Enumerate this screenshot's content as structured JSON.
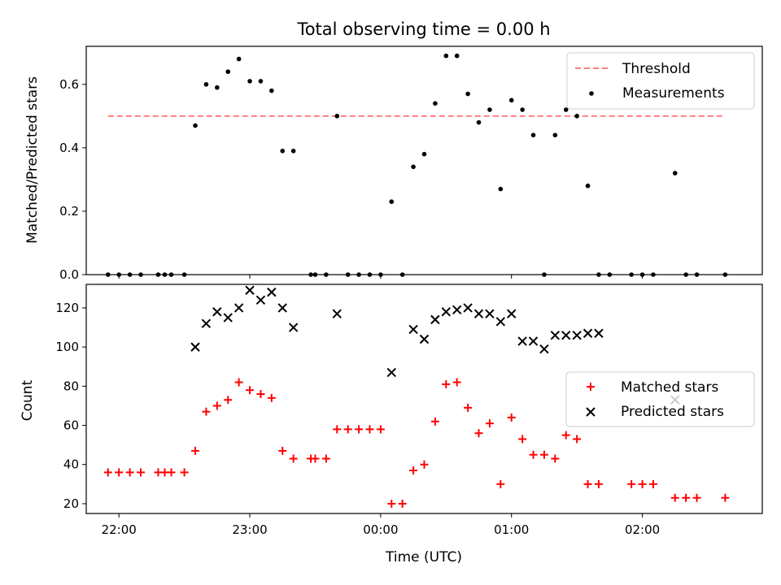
{
  "chart_data": [
    {
      "type": "scatter",
      "title": "Total observing time = 0.00 h",
      "ylabel": "Matched/Predicted stars",
      "xlim": [
        "21:45",
        "02:55"
      ],
      "ylim": [
        0,
        0.72
      ],
      "yticks": [
        0.0,
        0.2,
        0.4,
        0.6
      ],
      "yticklabels": [
        "0.0",
        "0.2",
        "0.4",
        "0.6"
      ],
      "legend_location": "upper right",
      "threshold": {
        "name": "Threshold",
        "value": 0.5,
        "x_range": [
          "21:55",
          "02:38"
        ],
        "style": "dashed",
        "color": "#ff7f7f"
      },
      "series": [
        {
          "name": "Measurements",
          "marker": "point",
          "color": "#000000",
          "x": [
            "21:55",
            "22:00",
            "22:05",
            "22:10",
            "22:18",
            "22:21",
            "22:24",
            "22:30",
            "22:35",
            "22:40",
            "22:45",
            "22:50",
            "22:55",
            "23:00",
            "23:05",
            "23:10",
            "23:15",
            "23:20",
            "23:28",
            "23:30",
            "23:35",
            "23:40",
            "23:45",
            "23:50",
            "23:55",
            "00:00",
            "00:05",
            "00:10",
            "00:15",
            "00:20",
            "00:25",
            "00:30",
            "00:35",
            "00:40",
            "00:45",
            "00:50",
            "00:55",
            "01:00",
            "01:05",
            "01:10",
            "01:15",
            "01:20",
            "01:25",
            "01:30",
            "01:35",
            "01:40",
            "01:45",
            "01:55",
            "02:00",
            "02:05",
            "02:15",
            "02:20",
            "02:25",
            "02:38"
          ],
          "y": [
            0,
            0,
            0,
            0,
            0,
            0,
            0,
            0,
            0.47,
            0.6,
            0.59,
            0.64,
            0.68,
            0.61,
            0.61,
            0.58,
            0.39,
            0.39,
            0,
            0,
            0,
            0.5,
            0,
            0,
            0,
            0,
            0.23,
            0,
            0.34,
            0.38,
            0.54,
            0.69,
            0.69,
            0.57,
            0.48,
            0.52,
            0.27,
            0.55,
            0.52,
            0.44,
            0,
            0.44,
            0.52,
            0.5,
            0.28,
            0,
            0,
            0,
            0,
            0,
            0.32,
            0,
            0,
            0
          ]
        }
      ]
    },
    {
      "type": "scatter",
      "xlabel": "Time (UTC)",
      "ylabel": "Count",
      "xlim": [
        "21:45",
        "02:55"
      ],
      "ylim": [
        15,
        132
      ],
      "xticks": [
        "22:00",
        "23:00",
        "00:00",
        "01:00",
        "02:00"
      ],
      "yticks": [
        20,
        40,
        60,
        80,
        100,
        120
      ],
      "yticklabels": [
        "20",
        "40",
        "60",
        "80",
        "100",
        "120"
      ],
      "legend_location": "center right",
      "series": [
        {
          "name": "Matched stars",
          "marker": "plus",
          "color": "#ff0000",
          "x": [
            "21:55",
            "22:00",
            "22:05",
            "22:10",
            "22:18",
            "22:21",
            "22:24",
            "22:30",
            "22:35",
            "22:40",
            "22:45",
            "22:50",
            "22:55",
            "23:00",
            "23:05",
            "23:10",
            "23:15",
            "23:20",
            "23:28",
            "23:30",
            "23:35",
            "23:40",
            "23:45",
            "23:50",
            "23:55",
            "00:00",
            "00:05",
            "00:10",
            "00:15",
            "00:20",
            "00:25",
            "00:30",
            "00:35",
            "00:40",
            "00:45",
            "00:50",
            "00:55",
            "01:00",
            "01:05",
            "01:10",
            "01:15",
            "01:20",
            "01:25",
            "01:30",
            "01:35",
            "01:40",
            "01:55",
            "02:00",
            "02:05",
            "02:15",
            "02:20",
            "02:25",
            "02:38"
          ],
          "y": [
            36,
            36,
            36,
            36,
            36,
            36,
            36,
            36,
            47,
            67,
            70,
            73,
            82,
            78,
            76,
            74,
            47,
            43,
            43,
            43,
            43,
            58,
            58,
            58,
            58,
            58,
            20,
            20,
            37,
            40,
            62,
            81,
            82,
            69,
            56,
            61,
            30,
            64,
            53,
            45,
            45,
            43,
            55,
            53,
            30,
            30,
            30,
            30,
            30,
            23,
            23,
            23,
            23
          ]
        },
        {
          "name": "Predicted stars",
          "marker": "x",
          "color": "#000000",
          "x": [
            "22:35",
            "22:40",
            "22:45",
            "22:50",
            "22:55",
            "23:00",
            "23:05",
            "23:10",
            "23:15",
            "23:20",
            "23:40",
            "00:05",
            "00:15",
            "00:20",
            "00:25",
            "00:30",
            "00:35",
            "00:40",
            "00:45",
            "00:50",
            "00:55",
            "01:00",
            "01:05",
            "01:10",
            "01:15",
            "01:20",
            "01:25",
            "01:30",
            "01:35",
            "01:40",
            "02:15"
          ],
          "y": [
            100,
            112,
            118,
            115,
            120,
            129,
            124,
            128,
            120,
            110,
            117,
            87,
            109,
            104,
            114,
            118,
            119,
            120,
            117,
            117,
            113,
            117,
            103,
            103,
            99,
            106,
            106,
            106,
            107,
            107,
            73
          ]
        }
      ]
    }
  ]
}
